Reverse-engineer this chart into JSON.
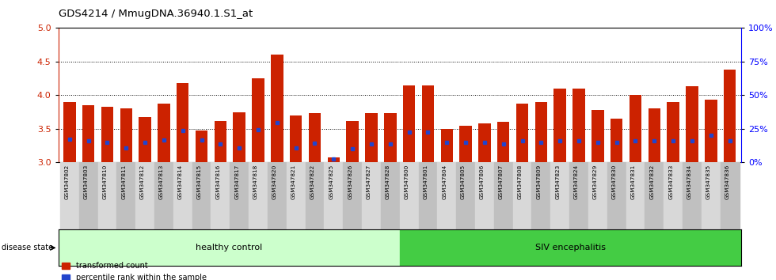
{
  "title": "GDS4214 / MmugDNA.36940.1.S1_at",
  "samples": [
    "GSM347802",
    "GSM347803",
    "GSM347810",
    "GSM347811",
    "GSM347812",
    "GSM347813",
    "GSM347814",
    "GSM347815",
    "GSM347816",
    "GSM347817",
    "GSM347818",
    "GSM347820",
    "GSM347821",
    "GSM347822",
    "GSM347825",
    "GSM347826",
    "GSM347827",
    "GSM347828",
    "GSM347800",
    "GSM347801",
    "GSM347804",
    "GSM347805",
    "GSM347806",
    "GSM347807",
    "GSM347808",
    "GSM347809",
    "GSM347823",
    "GSM347824",
    "GSM347829",
    "GSM347830",
    "GSM347831",
    "GSM347832",
    "GSM347833",
    "GSM347834",
    "GSM347835",
    "GSM347836"
  ],
  "transformed_count": [
    3.9,
    3.85,
    3.83,
    3.8,
    3.67,
    3.87,
    4.18,
    3.47,
    3.62,
    3.75,
    4.25,
    4.6,
    3.7,
    3.73,
    3.07,
    3.62,
    3.73,
    3.73,
    4.15,
    4.15,
    3.5,
    3.55,
    3.58,
    3.6,
    3.88,
    3.9,
    4.1,
    4.1,
    3.78,
    3.65,
    4.0,
    3.8,
    3.9,
    4.13,
    3.93,
    4.38
  ],
  "percentile_rank": [
    3.34,
    3.32,
    3.3,
    3.22,
    3.3,
    3.33,
    3.47,
    3.33,
    3.27,
    3.22,
    3.49,
    3.59,
    3.22,
    3.29,
    3.05,
    3.2,
    3.28,
    3.27,
    3.45,
    3.45,
    3.3,
    3.3,
    3.3,
    3.28,
    3.32,
    3.3,
    3.32,
    3.32,
    3.3,
    3.3,
    3.32,
    3.32,
    3.32,
    3.32,
    3.4,
    3.32
  ],
  "healthy_control_count": 18,
  "ylim_left": [
    3.0,
    5.0
  ],
  "yticks_left": [
    3.0,
    3.5,
    4.0,
    4.5,
    5.0
  ],
  "yticks_right": [
    0,
    25,
    50,
    75,
    100
  ],
  "bar_color": "#cc2200",
  "marker_color": "#2244cc",
  "healthy_color": "#ccffcc",
  "siv_color": "#44cc44",
  "disease_label_healthy": "healthy control",
  "disease_label_siv": "SIV encephalitis"
}
